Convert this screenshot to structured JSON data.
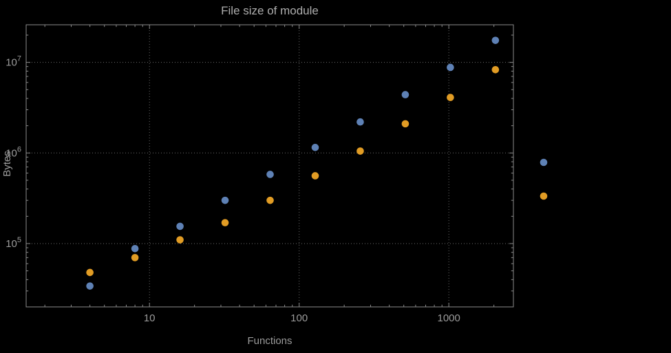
{
  "chart_data": {
    "type": "scatter",
    "title": "File size of module",
    "xlabel": "Functions",
    "ylabel": "Bytes",
    "x_scale": "log",
    "y_scale": "log",
    "xlim": [
      1.5,
      2700
    ],
    "ylim": [
      20000,
      26000000
    ],
    "grid": "dotted",
    "x_ticks": [
      {
        "value": 10,
        "label": "10"
      },
      {
        "value": 100,
        "label": "100"
      },
      {
        "value": 1000,
        "label": "1000"
      }
    ],
    "y_ticks": [
      {
        "value": 100000,
        "base": "10",
        "exp": "5"
      },
      {
        "value": 1000000,
        "base": "10",
        "exp": "6"
      },
      {
        "value": 10000000,
        "base": "10",
        "exp": "7"
      }
    ],
    "series": [
      {
        "name": "blue",
        "color": "#5e81b5",
        "x": [
          4,
          8,
          16,
          32,
          64,
          128,
          256,
          512,
          1024,
          2048
        ],
        "y": [
          34000,
          88000,
          155000,
          300000,
          580000,
          1150000,
          2200000,
          4400000,
          8800000,
          17500000
        ]
      },
      {
        "name": "orange",
        "color": "#e19c24",
        "x": [
          4,
          8,
          16,
          32,
          64,
          128,
          256,
          512,
          1024,
          2048
        ],
        "y": [
          48000,
          70000,
          110000,
          170000,
          300000,
          560000,
          1050000,
          2100000,
          4100000,
          8300000
        ]
      }
    ],
    "legend": {
      "position": "right",
      "markers": [
        {
          "color": "#5e81b5"
        },
        {
          "color": "#e19c24"
        }
      ]
    },
    "theme": {
      "background": "#000000",
      "frame_color": "#8c8c8c",
      "grid_color": "#6e6e6e",
      "text_color": "#9c9c9c"
    }
  }
}
